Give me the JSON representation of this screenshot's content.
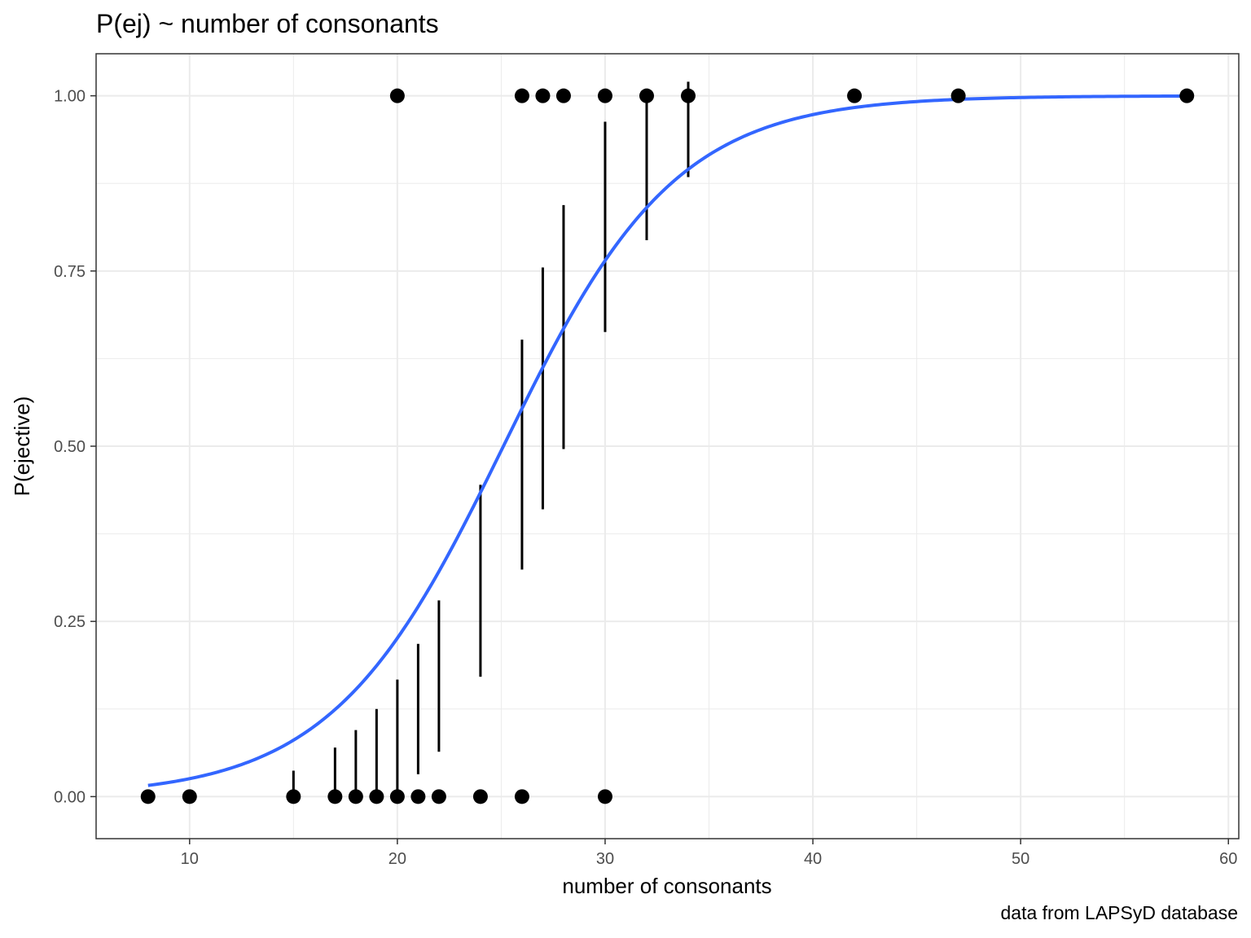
{
  "chart_data": {
    "type": "scatter",
    "title": "P(ej) ~ number of consonants",
    "xlabel": "number of consonants",
    "ylabel": "P(ejective)",
    "caption": "data from LAPSyD database",
    "xlim": [
      5.5,
      60.5
    ],
    "ylim": [
      -0.06,
      1.06
    ],
    "x_ticks": [
      10,
      20,
      30,
      40,
      50,
      60
    ],
    "x_tick_labels": [
      "10",
      "20",
      "30",
      "40",
      "50",
      "60"
    ],
    "y_ticks": [
      0,
      0.25,
      0.5,
      0.75,
      1
    ],
    "y_tick_labels": [
      "0.00",
      "0.25",
      "0.50",
      "0.75",
      "1.00"
    ],
    "x_minor_ticks": [
      15,
      25,
      35,
      45,
      55
    ],
    "y_minor_ticks": [
      0.125,
      0.375,
      0.625,
      0.875
    ],
    "grid": true,
    "points": [
      {
        "x": 20,
        "y": 1
      },
      {
        "x": 26,
        "y": 1
      },
      {
        "x": 27,
        "y": 1
      },
      {
        "x": 28,
        "y": 1
      },
      {
        "x": 30,
        "y": 1
      },
      {
        "x": 32,
        "y": 1
      },
      {
        "x": 34,
        "y": 1
      },
      {
        "x": 42,
        "y": 1
      },
      {
        "x": 47,
        "y": 1
      },
      {
        "x": 58,
        "y": 1
      },
      {
        "x": 8,
        "y": 0
      },
      {
        "x": 10,
        "y": 0
      },
      {
        "x": 15,
        "y": 0
      },
      {
        "x": 17,
        "y": 0
      },
      {
        "x": 18,
        "y": 0
      },
      {
        "x": 19,
        "y": 0
      },
      {
        "x": 20,
        "y": 0
      },
      {
        "x": 21,
        "y": 0
      },
      {
        "x": 22,
        "y": 0
      },
      {
        "x": 24,
        "y": 0
      },
      {
        "x": 26,
        "y": 0
      },
      {
        "x": 30,
        "y": 0
      }
    ],
    "error_bars": [
      {
        "x": 15,
        "low": 0.0,
        "high": 0.037
      },
      {
        "x": 17,
        "low": 0.0,
        "high": 0.07
      },
      {
        "x": 18,
        "low": 0.0,
        "high": 0.095
      },
      {
        "x": 19,
        "low": 0.0,
        "high": 0.125
      },
      {
        "x": 20,
        "low": 0.0,
        "high": 0.167
      },
      {
        "x": 21,
        "low": 0.032,
        "high": 0.218
      },
      {
        "x": 22,
        "low": 0.064,
        "high": 0.28
      },
      {
        "x": 24,
        "low": 0.171,
        "high": 0.445
      },
      {
        "x": 26,
        "low": 0.324,
        "high": 0.652
      },
      {
        "x": 27,
        "low": 0.41,
        "high": 0.755
      },
      {
        "x": 28,
        "low": 0.496,
        "high": 0.844
      },
      {
        "x": 30,
        "low": 0.663,
        "high": 0.963
      },
      {
        "x": 32,
        "low": 0.794,
        "high": 1.0
      },
      {
        "x": 34,
        "low": 0.884,
        "high": 1.02
      }
    ],
    "fit": {
      "type": "logistic",
      "intercept": -6.05,
      "slope": 0.241,
      "x_range": [
        8,
        58
      ]
    },
    "colors": {
      "points": "#000000",
      "fit_line": "#3366FF",
      "grid": "#ebebeb",
      "panel_border": "#333333"
    }
  }
}
